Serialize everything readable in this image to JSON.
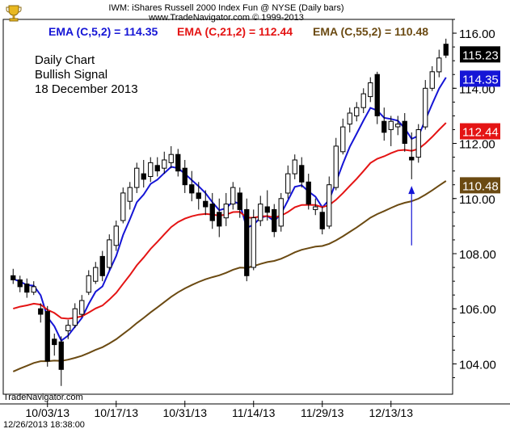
{
  "header": {
    "title": "IWM:  iShares Russell 2000 Index Fun @ NYSE  (Daily bars)",
    "source": "www.TradeNavigator.com © 1999-2013"
  },
  "legend": {
    "ema5": "EMA (C,5,2) = 114.35",
    "ema21": "EMA (C,21,2) = 112.44",
    "ema55": "EMA (C,55,2) = 110.48"
  },
  "annotation": {
    "line1": "Daily Chart",
    "line2": "Bullish Signal",
    "line3": "18 December 2013"
  },
  "footer": {
    "brand": "TradeNavigator.com",
    "timestamp": "12/26/2013 18:38:00"
  },
  "colors": {
    "ema5": "#1515d6",
    "ema21": "#e41414",
    "ema55": "#6b4a12",
    "price_tag": "#000000",
    "up_candle": "#ffffff",
    "down_candle": "#000000",
    "arrow": "#1515d6"
  },
  "chart_data": {
    "type": "candlestick",
    "title": "IWM:  iShares Russell 2000 Index Fun @ NYSE  (Daily bars)",
    "ylim": [
      102.9,
      116.5
    ],
    "y_ticks": [
      104.0,
      106.0,
      108.0,
      110.0,
      112.0,
      114.0,
      116.0
    ],
    "x_tick_labels": [
      "10/03/13",
      "10/17/13",
      "10/31/13",
      "11/14/13",
      "11/29/13",
      "12/13/13"
    ],
    "price_tags": [
      {
        "label": "115.23",
        "value": 115.23,
        "color": "#000000"
      },
      {
        "label": "114.35",
        "value": 114.35,
        "color": "#1515d6"
      },
      {
        "label": "112.44",
        "value": 112.44,
        "color": "#e41414"
      },
      {
        "label": "110.48",
        "value": 110.48,
        "color": "#6b4a12"
      }
    ],
    "signal": {
      "date": "12/18/13",
      "label": "Bullish Signal"
    },
    "candles": [
      {
        "date": "9/26/13",
        "o": 107.2,
        "h": 107.45,
        "l": 106.9,
        "c": 107.05
      },
      {
        "date": "9/27/13",
        "o": 107.05,
        "h": 107.2,
        "l": 106.6,
        "c": 106.8
      },
      {
        "date": "9/30/13",
        "o": 106.9,
        "h": 107.1,
        "l": 106.4,
        "c": 106.6
      },
      {
        "date": "10/1/13",
        "o": 106.6,
        "h": 107.0,
        "l": 106.5,
        "c": 106.8
      },
      {
        "date": "10/2/13",
        "o": 106.0,
        "h": 106.2,
        "l": 105.5,
        "c": 105.8
      },
      {
        "date": "10/3/13",
        "o": 105.9,
        "h": 106.1,
        "l": 103.9,
        "c": 104.1
      },
      {
        "date": "10/4/13",
        "o": 104.9,
        "h": 105.1,
        "l": 104.3,
        "c": 104.7
      },
      {
        "date": "10/7/13",
        "o": 104.8,
        "h": 105.0,
        "l": 103.2,
        "c": 103.8
      },
      {
        "date": "10/8/13",
        "o": 105.2,
        "h": 105.6,
        "l": 104.9,
        "c": 105.4
      },
      {
        "date": "10/9/13",
        "o": 105.4,
        "h": 106.2,
        "l": 105.3,
        "c": 106.0
      },
      {
        "date": "10/10/13",
        "o": 105.8,
        "h": 106.5,
        "l": 105.7,
        "c": 106.3
      },
      {
        "date": "10/11/13",
        "o": 106.6,
        "h": 107.4,
        "l": 106.5,
        "c": 107.2
      },
      {
        "date": "10/14/13",
        "o": 107.0,
        "h": 107.7,
        "l": 106.9,
        "c": 107.5
      },
      {
        "date": "10/15/13",
        "o": 107.9,
        "h": 108.1,
        "l": 107.0,
        "c": 107.2
      },
      {
        "date": "10/16/13",
        "o": 107.5,
        "h": 108.7,
        "l": 107.4,
        "c": 108.5
      },
      {
        "date": "10/17/13",
        "o": 108.3,
        "h": 109.2,
        "l": 108.1,
        "c": 109.0
      },
      {
        "date": "10/18/13",
        "o": 109.2,
        "h": 110.4,
        "l": 109.1,
        "c": 110.2
      },
      {
        "date": "10/21/13",
        "o": 109.9,
        "h": 110.6,
        "l": 109.6,
        "c": 110.4
      },
      {
        "date": "10/22/13",
        "o": 110.4,
        "h": 111.3,
        "l": 110.2,
        "c": 111.1
      },
      {
        "date": "10/23/13",
        "o": 110.9,
        "h": 111.4,
        "l": 110.4,
        "c": 110.7
      },
      {
        "date": "10/24/13",
        "o": 110.8,
        "h": 111.5,
        "l": 110.6,
        "c": 111.3
      },
      {
        "date": "10/25/13",
        "o": 111.2,
        "h": 111.5,
        "l": 110.8,
        "c": 111.0
      },
      {
        "date": "10/28/13",
        "o": 111.1,
        "h": 111.7,
        "l": 110.9,
        "c": 111.4
      },
      {
        "date": "10/29/13",
        "o": 111.3,
        "h": 111.9,
        "l": 111.1,
        "c": 111.6
      },
      {
        "date": "10/30/13",
        "o": 111.6,
        "h": 111.8,
        "l": 110.8,
        "c": 111.0
      },
      {
        "date": "10/31/13",
        "o": 111.1,
        "h": 111.4,
        "l": 110.2,
        "c": 110.5
      },
      {
        "date": "11/1/13",
        "o": 110.5,
        "h": 111.0,
        "l": 109.9,
        "c": 110.2
      },
      {
        "date": "11/4/13",
        "o": 110.2,
        "h": 110.6,
        "l": 109.6,
        "c": 110.0
      },
      {
        "date": "11/5/13",
        "o": 109.9,
        "h": 110.3,
        "l": 109.4,
        "c": 109.7
      },
      {
        "date": "11/6/13",
        "o": 109.8,
        "h": 110.2,
        "l": 108.9,
        "c": 109.2
      },
      {
        "date": "11/7/13",
        "o": 109.5,
        "h": 110.0,
        "l": 108.6,
        "c": 109.0
      },
      {
        "date": "11/8/13",
        "o": 109.3,
        "h": 110.2,
        "l": 109.0,
        "c": 109.8
      },
      {
        "date": "11/11/13",
        "o": 109.8,
        "h": 110.6,
        "l": 109.6,
        "c": 110.4
      },
      {
        "date": "11/12/13",
        "o": 110.2,
        "h": 110.4,
        "l": 109.3,
        "c": 109.6
      },
      {
        "date": "11/13/13",
        "o": 109.6,
        "h": 110.0,
        "l": 107.0,
        "c": 107.2
      },
      {
        "date": "11/14/13",
        "o": 107.5,
        "h": 109.6,
        "l": 107.4,
        "c": 109.3
      },
      {
        "date": "11/15/13",
        "o": 109.2,
        "h": 110.1,
        "l": 109.0,
        "c": 109.8
      },
      {
        "date": "11/18/13",
        "o": 109.7,
        "h": 110.3,
        "l": 109.2,
        "c": 109.5
      },
      {
        "date": "11/19/13",
        "o": 109.6,
        "h": 109.8,
        "l": 108.6,
        "c": 108.8
      },
      {
        "date": "11/20/13",
        "o": 109.0,
        "h": 110.2,
        "l": 108.8,
        "c": 110.0
      },
      {
        "date": "11/21/13",
        "o": 110.2,
        "h": 111.2,
        "l": 110.0,
        "c": 110.9
      },
      {
        "date": "11/22/13",
        "o": 110.9,
        "h": 111.6,
        "l": 110.7,
        "c": 111.4
      },
      {
        "date": "11/25/13",
        "o": 111.2,
        "h": 111.5,
        "l": 110.4,
        "c": 110.6
      },
      {
        "date": "11/26/13",
        "o": 110.6,
        "h": 110.9,
        "l": 109.6,
        "c": 109.8
      },
      {
        "date": "11/27/13",
        "o": 109.6,
        "h": 110.0,
        "l": 109.4,
        "c": 109.7
      },
      {
        "date": "11/29/13",
        "o": 109.5,
        "h": 109.7,
        "l": 108.7,
        "c": 108.9
      },
      {
        "date": "12/2/13",
        "o": 109.0,
        "h": 110.8,
        "l": 108.9,
        "c": 110.5
      },
      {
        "date": "12/3/13",
        "o": 110.4,
        "h": 112.2,
        "l": 110.3,
        "c": 111.9
      },
      {
        "date": "12/4/13",
        "o": 111.7,
        "h": 112.9,
        "l": 111.6,
        "c": 112.6
      },
      {
        "date": "12/5/13",
        "o": 112.7,
        "h": 113.3,
        "l": 112.4,
        "c": 113.1
      },
      {
        "date": "12/6/13",
        "o": 113.0,
        "h": 113.5,
        "l": 112.8,
        "c": 113.3
      },
      {
        "date": "12/9/13",
        "o": 113.3,
        "h": 114.0,
        "l": 113.1,
        "c": 113.8
      },
      {
        "date": "12/10/13",
        "o": 113.7,
        "h": 114.4,
        "l": 113.5,
        "c": 114.2
      },
      {
        "date": "12/11/13",
        "o": 114.5,
        "h": 114.6,
        "l": 112.7,
        "c": 113.0
      },
      {
        "date": "12/12/13",
        "o": 112.8,
        "h": 113.3,
        "l": 112.1,
        "c": 112.4
      },
      {
        "date": "12/13/13",
        "o": 112.5,
        "h": 113.0,
        "l": 111.9,
        "c": 112.8
      },
      {
        "date": "12/16/13",
        "o": 112.6,
        "h": 113.0,
        "l": 112.3,
        "c": 112.7
      },
      {
        "date": "12/17/13",
        "o": 112.8,
        "h": 113.1,
        "l": 111.7,
        "c": 112.0
      },
      {
        "date": "12/18/13",
        "o": 111.5,
        "h": 112.4,
        "l": 110.7,
        "c": 111.4
      },
      {
        "date": "12/19/13",
        "o": 111.5,
        "h": 112.7,
        "l": 111.3,
        "c": 112.5
      },
      {
        "date": "12/20/13",
        "o": 112.6,
        "h": 114.3,
        "l": 112.5,
        "c": 114.0
      },
      {
        "date": "12/23/13",
        "o": 114.0,
        "h": 114.8,
        "l": 113.9,
        "c": 114.6
      },
      {
        "date": "12/24/13",
        "o": 114.6,
        "h": 115.4,
        "l": 114.4,
        "c": 115.1
      },
      {
        "date": "12/26/13",
        "o": 115.6,
        "h": 115.8,
        "l": 115.1,
        "c": 115.2
      }
    ]
  }
}
